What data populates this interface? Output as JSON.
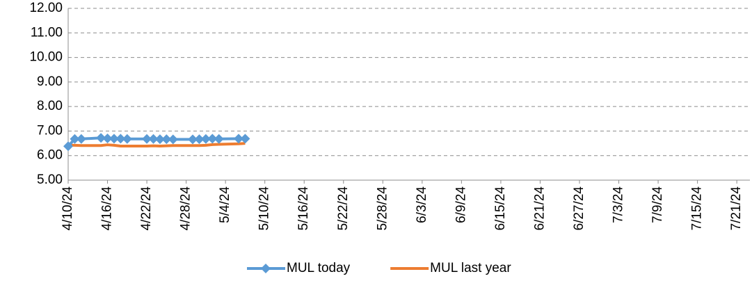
{
  "chart_data": {
    "type": "line",
    "x": [
      "2024-04-10",
      "2024-04-11",
      "2024-04-12",
      "2024-04-15",
      "2024-04-16",
      "2024-04-17",
      "2024-04-18",
      "2024-04-19",
      "2024-04-22",
      "2024-04-23",
      "2024-04-24",
      "2024-04-25",
      "2024-04-26",
      "2024-04-29",
      "2024-04-30",
      "2024-05-01",
      "2024-05-02",
      "2024-05-03",
      "2024-05-06",
      "2024-05-07"
    ],
    "series": [
      {
        "name": "MUL today",
        "color": "#5b9bd5",
        "marker": "diamond",
        "values": [
          6.38,
          6.68,
          6.68,
          6.72,
          6.7,
          6.69,
          6.69,
          6.68,
          6.68,
          6.68,
          6.67,
          6.67,
          6.66,
          6.66,
          6.67,
          6.68,
          6.69,
          6.68,
          6.69,
          6.69
        ]
      },
      {
        "name": "MUL last year",
        "color": "#ed7d31",
        "values": [
          6.42,
          6.42,
          6.41,
          6.41,
          6.44,
          6.42,
          6.39,
          6.39,
          6.39,
          6.4,
          6.39,
          6.4,
          6.41,
          6.41,
          6.41,
          6.42,
          6.45,
          6.46,
          6.48,
          6.5
        ]
      }
    ],
    "xlim": [
      "2024-04-10",
      "2024-07-23"
    ],
    "xticks": [
      {
        "value": "2024-04-10",
        "label": "4/10/24"
      },
      {
        "value": "2024-04-16",
        "label": "4/16/24"
      },
      {
        "value": "2024-04-22",
        "label": "4/22/24"
      },
      {
        "value": "2024-04-28",
        "label": "4/28/24"
      },
      {
        "value": "2024-05-04",
        "label": "5/4/24"
      },
      {
        "value": "2024-05-10",
        "label": "5/10/24"
      },
      {
        "value": "2024-05-16",
        "label": "5/16/24"
      },
      {
        "value": "2024-05-22",
        "label": "5/22/24"
      },
      {
        "value": "2024-05-28",
        "label": "5/28/24"
      },
      {
        "value": "2024-06-03",
        "label": "6/3/24"
      },
      {
        "value": "2024-06-09",
        "label": "6/9/24"
      },
      {
        "value": "2024-06-15",
        "label": "6/15/24"
      },
      {
        "value": "2024-06-21",
        "label": "6/21/24"
      },
      {
        "value": "2024-06-27",
        "label": "6/27/24"
      },
      {
        "value": "2024-07-03",
        "label": "7/3/24"
      },
      {
        "value": "2024-07-09",
        "label": "7/9/24"
      },
      {
        "value": "2024-07-15",
        "label": "7/15/24"
      },
      {
        "value": "2024-07-21",
        "label": "7/21/24"
      }
    ],
    "ylim": [
      5,
      12
    ],
    "yticks": [
      {
        "value": 5,
        "label": "5.00"
      },
      {
        "value": 6,
        "label": "6.00"
      },
      {
        "value": 7,
        "label": "7.00"
      },
      {
        "value": 8,
        "label": "8.00"
      },
      {
        "value": 9,
        "label": "9.00"
      },
      {
        "value": 10,
        "label": "10.00"
      },
      {
        "value": 11,
        "label": "11.00"
      },
      {
        "value": 12,
        "label": "12.00"
      }
    ],
    "grid": true,
    "legend": "bottom"
  }
}
